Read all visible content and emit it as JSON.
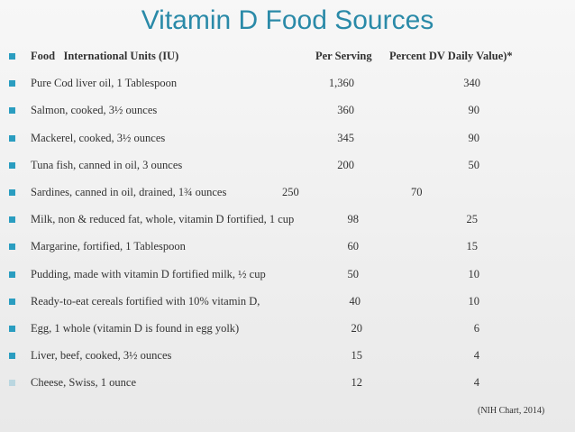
{
  "title": "Vitamin D Food Sources",
  "table": {
    "header": [
      "Food   International Units (IU)",
      "Per Serving",
      "Percent DV Daily Value)*"
    ],
    "rows": [
      [
        "Pure Cod liver oil, 1 Tablespoon",
        "1,360",
        "340"
      ],
      [
        "Salmon, cooked, 3½ ounces",
        "360",
        "90"
      ],
      [
        "Mackerel, cooked, 3½ ounces",
        "345",
        "90"
      ],
      [
        "Tuna fish, canned in oil, 3 ounces",
        "200",
        "50"
      ],
      [
        "Sardines, canned in oil, drained, 1¾ ounces",
        "250",
        "70"
      ],
      [
        "Milk, non & reduced fat, whole, vitamin D fortified, 1 cup",
        "98",
        "25"
      ],
      [
        "Margarine, fortified, 1 Tablespoon",
        "60",
        "15"
      ],
      [
        "Pudding, made with vitamin D fortified milk, ½ cup",
        "50",
        "10"
      ],
      [
        "Ready-to-eat cereals fortified with 10% vitamin D,",
        "40",
        "10"
      ],
      [
        "Egg, 1 whole (vitamin D is found in egg yolk)",
        "20",
        "6"
      ],
      [
        "Liver, beef, cooked, 3½ ounces",
        "15",
        "4"
      ],
      [
        "Cheese, Swiss, 1 ounce",
        "12",
        "4"
      ]
    ]
  },
  "citation": "(NIH Chart, 2014)"
}
